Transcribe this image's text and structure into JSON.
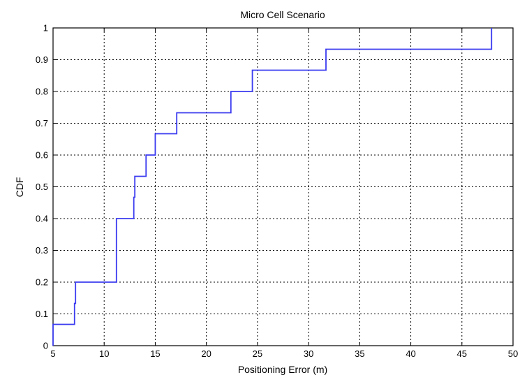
{
  "chart_data": {
    "type": "line",
    "step": true,
    "title": "Micro Cell Scenario",
    "xlabel": "Positioning Error (m)",
    "ylabel": "CDF",
    "xlim": [
      5,
      50
    ],
    "ylim": [
      0,
      1
    ],
    "xticks": [
      "5",
      "10",
      "15",
      "20",
      "25",
      "30",
      "35",
      "40",
      "45",
      "50"
    ],
    "yticks": [
      "0",
      "0.1",
      "0.2",
      "0.3",
      "0.4",
      "0.5",
      "0.6",
      "0.7",
      "0.8",
      "0.9",
      "1"
    ],
    "grid": true,
    "line_color": "#3b3bf0",
    "series": [
      {
        "x": [
          5,
          7.1,
          7.1,
          7.2,
          7.2,
          11.2,
          11.2,
          12.9,
          12.9,
          13.0,
          13.0,
          14.1,
          14.1,
          15.0,
          15.0,
          17.1,
          17.1,
          22.4,
          22.4,
          24.5,
          24.5,
          31.7,
          31.7,
          47.9,
          47.9
        ],
        "y": [
          0.067,
          0.067,
          0.133,
          0.133,
          0.2,
          0.2,
          0.4,
          0.4,
          0.467,
          0.467,
          0.533,
          0.533,
          0.6,
          0.6,
          0.667,
          0.667,
          0.733,
          0.733,
          0.8,
          0.8,
          0.867,
          0.867,
          0.933,
          0.933,
          1.0
        ]
      }
    ]
  }
}
